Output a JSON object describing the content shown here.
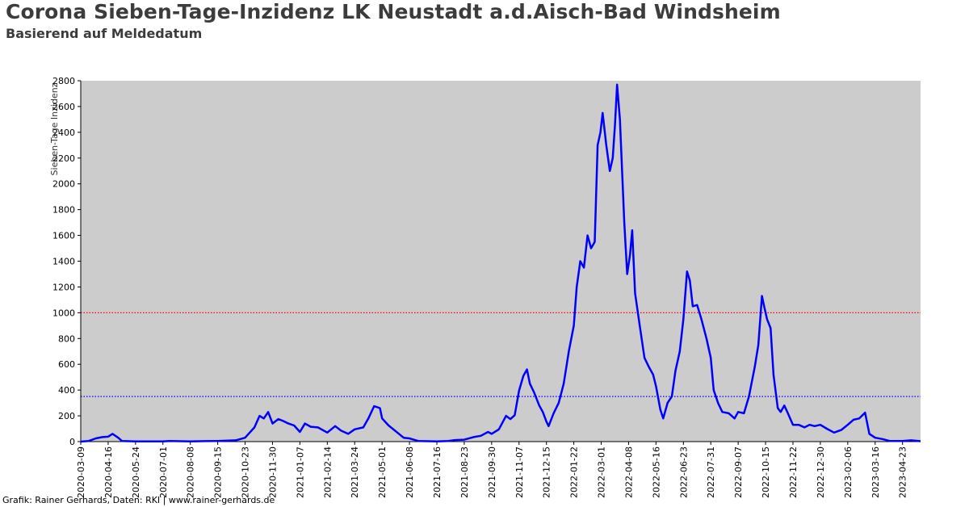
{
  "header": {
    "title": "Corona Sieben-Tage-Inzidenz LK Neustadt a.d.Aisch-Bad Windsheim",
    "subtitle": "Basierend auf Meldedatum"
  },
  "footer": {
    "credit": "Grafik: Rainer Gerhards, Daten: RKI | www.rainer-gerhards.de"
  },
  "colors": {
    "plot_background": "#cccccc",
    "line": "#0000ff",
    "threshold_high": "#ff0000",
    "threshold_low": "#0000ff"
  },
  "chart_data": {
    "type": "line",
    "title": "Corona Sieben-Tage-Inzidenz LK Neustadt a.d.Aisch-Bad Windsheim",
    "subtitle": "Basierend auf Meldedatum",
    "xlabel": "",
    "ylabel": "Sieben-Tage Inzidenz",
    "ylim": [
      0,
      2800
    ],
    "xlim": [
      "2020-03-09",
      "2023-05-18"
    ],
    "yticks": [
      0,
      200,
      400,
      600,
      800,
      1000,
      1200,
      1400,
      1600,
      1800,
      2000,
      2200,
      2400,
      2600,
      2800
    ],
    "xticks": [
      "2020-03-09",
      "2020-04-16",
      "2020-05-24",
      "2020-07-01",
      "2020-08-08",
      "2020-09-15",
      "2020-10-23",
      "2020-11-30",
      "2021-01-07",
      "2021-02-14",
      "2021-03-24",
      "2021-05-01",
      "2021-06-08",
      "2021-07-16",
      "2021-08-23",
      "2021-09-30",
      "2021-11-07",
      "2021-12-15",
      "2022-01-22",
      "2022-03-01",
      "2022-04-08",
      "2022-05-16",
      "2022-06-23",
      "2022-07-31",
      "2022-09-07",
      "2022-10-15",
      "2022-11-22",
      "2022-12-30",
      "2023-02-06",
      "2023-03-16",
      "2023-04-23"
    ],
    "grid": false,
    "threshold_lines": [
      {
        "value": 1000,
        "color": "#ff0000",
        "style": "dotted"
      },
      {
        "value": 350,
        "color": "#0000ff",
        "style": "dotted"
      }
    ],
    "series": [
      {
        "color": "#0000ff",
        "points": [
          [
            "2020-03-09",
            0
          ],
          [
            "2020-03-20",
            5
          ],
          [
            "2020-03-30",
            25
          ],
          [
            "2020-04-08",
            35
          ],
          [
            "2020-04-16",
            38
          ],
          [
            "2020-04-22",
            60
          ],
          [
            "2020-04-30",
            30
          ],
          [
            "2020-05-05",
            5
          ],
          [
            "2020-05-24",
            2
          ],
          [
            "2020-07-01",
            2
          ],
          [
            "2020-07-10",
            5
          ],
          [
            "2020-08-08",
            2
          ],
          [
            "2020-09-15",
            5
          ],
          [
            "2020-10-10",
            10
          ],
          [
            "2020-10-23",
            30
          ],
          [
            "2020-11-05",
            110
          ],
          [
            "2020-11-12",
            200
          ],
          [
            "2020-11-18",
            180
          ],
          [
            "2020-11-24",
            230
          ],
          [
            "2020-11-30",
            140
          ],
          [
            "2020-12-08",
            175
          ],
          [
            "2020-12-15",
            160
          ],
          [
            "2020-12-22",
            140
          ],
          [
            "2020-12-30",
            125
          ],
          [
            "2021-01-07",
            75
          ],
          [
            "2021-01-14",
            140
          ],
          [
            "2021-01-22",
            115
          ],
          [
            "2021-02-01",
            110
          ],
          [
            "2021-02-14",
            70
          ],
          [
            "2021-02-25",
            120
          ],
          [
            "2021-03-05",
            85
          ],
          [
            "2021-03-15",
            60
          ],
          [
            "2021-03-24",
            95
          ],
          [
            "2021-04-05",
            110
          ],
          [
            "2021-04-12",
            180
          ],
          [
            "2021-04-20",
            275
          ],
          [
            "2021-04-28",
            260
          ],
          [
            "2021-05-01",
            180
          ],
          [
            "2021-05-10",
            125
          ],
          [
            "2021-05-20",
            80
          ],
          [
            "2021-05-31",
            30
          ],
          [
            "2021-06-08",
            25
          ],
          [
            "2021-06-20",
            5
          ],
          [
            "2021-07-16",
            2
          ],
          [
            "2021-08-01",
            5
          ],
          [
            "2021-08-10",
            12
          ],
          [
            "2021-08-23",
            15
          ],
          [
            "2021-09-05",
            35
          ],
          [
            "2021-09-15",
            45
          ],
          [
            "2021-09-25",
            75
          ],
          [
            "2021-09-30",
            60
          ],
          [
            "2021-10-10",
            95
          ],
          [
            "2021-10-20",
            200
          ],
          [
            "2021-10-26",
            175
          ],
          [
            "2021-11-01",
            205
          ],
          [
            "2021-11-07",
            395
          ],
          [
            "2021-11-13",
            510
          ],
          [
            "2021-11-18",
            560
          ],
          [
            "2021-11-22",
            450
          ],
          [
            "2021-11-28",
            380
          ],
          [
            "2021-12-05",
            280
          ],
          [
            "2021-12-10",
            230
          ],
          [
            "2021-12-15",
            155
          ],
          [
            "2021-12-18",
            120
          ],
          [
            "2021-12-25",
            220
          ],
          [
            "2022-01-01",
            300
          ],
          [
            "2022-01-08",
            450
          ],
          [
            "2022-01-15",
            700
          ],
          [
            "2022-01-22",
            900
          ],
          [
            "2022-01-26",
            1200
          ],
          [
            "2022-01-31",
            1400
          ],
          [
            "2022-02-05",
            1350
          ],
          [
            "2022-02-10",
            1600
          ],
          [
            "2022-02-15",
            1500
          ],
          [
            "2022-02-20",
            1550
          ],
          [
            "2022-02-24",
            2300
          ],
          [
            "2022-02-28",
            2400
          ],
          [
            "2022-03-03",
            2550
          ],
          [
            "2022-03-08",
            2300
          ],
          [
            "2022-03-13",
            2100
          ],
          [
            "2022-03-17",
            2200
          ],
          [
            "2022-03-20",
            2450
          ],
          [
            "2022-03-23",
            2770
          ],
          [
            "2022-03-27",
            2500
          ],
          [
            "2022-04-02",
            1700
          ],
          [
            "2022-04-06",
            1300
          ],
          [
            "2022-04-10",
            1450
          ],
          [
            "2022-04-13",
            1640
          ],
          [
            "2022-04-17",
            1150
          ],
          [
            "2022-04-24",
            880
          ],
          [
            "2022-04-30",
            650
          ],
          [
            "2022-05-06",
            580
          ],
          [
            "2022-05-12",
            520
          ],
          [
            "2022-05-16",
            430
          ],
          [
            "2022-05-22",
            250
          ],
          [
            "2022-05-26",
            180
          ],
          [
            "2022-06-01",
            300
          ],
          [
            "2022-06-07",
            350
          ],
          [
            "2022-06-12",
            550
          ],
          [
            "2022-06-18",
            700
          ],
          [
            "2022-06-23",
            950
          ],
          [
            "2022-06-28",
            1320
          ],
          [
            "2022-07-02",
            1250
          ],
          [
            "2022-07-06",
            1050
          ],
          [
            "2022-07-12",
            1060
          ],
          [
            "2022-07-18",
            950
          ],
          [
            "2022-07-25",
            800
          ],
          [
            "2022-07-31",
            650
          ],
          [
            "2022-08-04",
            400
          ],
          [
            "2022-08-10",
            300
          ],
          [
            "2022-08-16",
            230
          ],
          [
            "2022-08-25",
            220
          ],
          [
            "2022-09-02",
            180
          ],
          [
            "2022-09-07",
            230
          ],
          [
            "2022-09-15",
            220
          ],
          [
            "2022-09-22",
            350
          ],
          [
            "2022-09-30",
            580
          ],
          [
            "2022-10-05",
            750
          ],
          [
            "2022-10-10",
            1130
          ],
          [
            "2022-10-13",
            1050
          ],
          [
            "2022-10-17",
            950
          ],
          [
            "2022-10-22",
            880
          ],
          [
            "2022-10-26",
            520
          ],
          [
            "2022-11-01",
            260
          ],
          [
            "2022-11-05",
            230
          ],
          [
            "2022-11-10",
            280
          ],
          [
            "2022-11-15",
            220
          ],
          [
            "2022-11-22",
            130
          ],
          [
            "2022-11-30",
            130
          ],
          [
            "2022-12-08",
            110
          ],
          [
            "2022-12-15",
            130
          ],
          [
            "2022-12-22",
            120
          ],
          [
            "2022-12-30",
            130
          ],
          [
            "2023-01-08",
            100
          ],
          [
            "2023-01-18",
            70
          ],
          [
            "2023-01-28",
            90
          ],
          [
            "2023-02-06",
            130
          ],
          [
            "2023-02-14",
            170
          ],
          [
            "2023-02-22",
            180
          ],
          [
            "2023-03-02",
            225
          ],
          [
            "2023-03-08",
            60
          ],
          [
            "2023-03-16",
            30
          ],
          [
            "2023-03-26",
            20
          ],
          [
            "2023-04-05",
            5
          ],
          [
            "2023-04-23",
            5
          ],
          [
            "2023-05-05",
            10
          ],
          [
            "2023-05-18",
            3
          ]
        ]
      }
    ]
  }
}
